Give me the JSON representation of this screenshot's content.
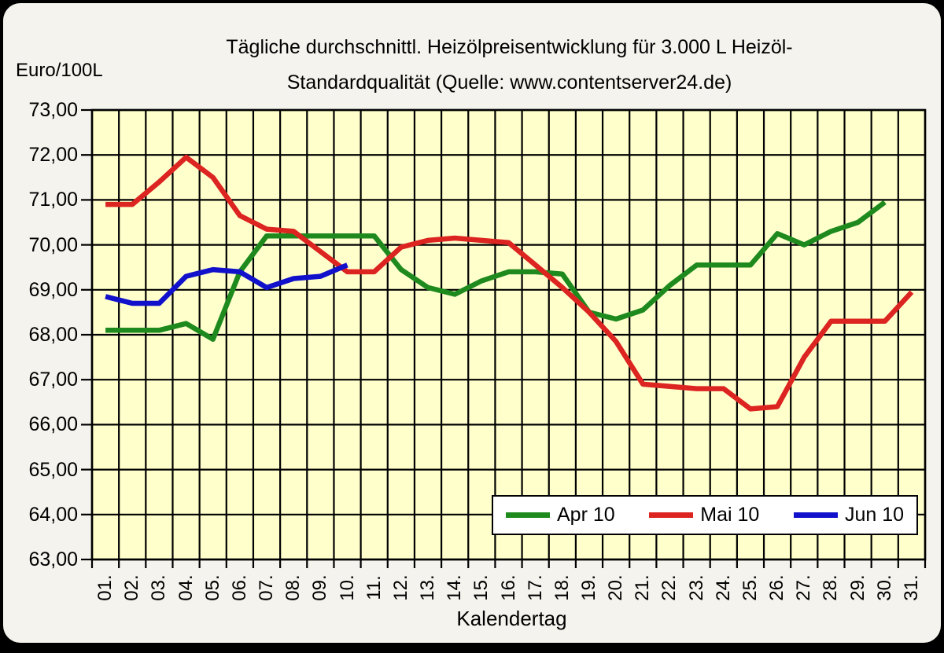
{
  "header": {
    "title_line1": "Tägliche durchschnittl. Heizölpreisentwicklung für 3.000 L Heizöl-",
    "title_line2": "Standardqualität (Quelle: www.contentserver24.de)",
    "axis_unit_label": "Euro/100L"
  },
  "chart_data": {
    "type": "line",
    "title": "Tägliche durchschnittl. Heizölpreisentwicklung für 3.000 L Heizöl-Standardqualität (Quelle: www.contentserver24.de)",
    "ylabel": "Euro/100L",
    "xlabel": "Kalendertag",
    "ylim": [
      63,
      73
    ],
    "ytick_step": 1,
    "ytick_labels": [
      "73,00",
      "72,00",
      "71,00",
      "70,00",
      "69,00",
      "68,00",
      "67,00",
      "66,00",
      "65,00",
      "64,00",
      "63,00"
    ],
    "categories": [
      "01.",
      "02.",
      "03.",
      "04.",
      "05.",
      "06.",
      "07.",
      "08.",
      "09.",
      "10.",
      "11.",
      "12.",
      "13.",
      "14.",
      "15.",
      "16.",
      "17.",
      "18.",
      "19.",
      "20.",
      "21.",
      "22.",
      "23.",
      "24.",
      "25.",
      "26.",
      "27.",
      "28.",
      "29.",
      "30.",
      "31."
    ],
    "grid": true,
    "plot_bg_color": "#ffffcc",
    "grid_color": "#000000",
    "legend_position": "inside-bottom-right",
    "series": [
      {
        "name": "Apr 10",
        "color": "#1e8a1e",
        "values": [
          68.1,
          68.1,
          68.1,
          68.25,
          67.9,
          69.4,
          70.2,
          70.2,
          70.2,
          70.2,
          70.2,
          69.45,
          69.05,
          68.9,
          69.2,
          69.4,
          69.4,
          69.35,
          68.5,
          68.35,
          68.55,
          69.1,
          69.55,
          69.55,
          69.55,
          70.25,
          70.0,
          70.3,
          70.5,
          70.95
        ]
      },
      {
        "name": "Mai 10",
        "color": "#dc2420",
        "values": [
          70.9,
          70.9,
          71.4,
          71.95,
          71.5,
          70.65,
          70.35,
          70.3,
          69.85,
          69.4,
          69.4,
          69.95,
          70.1,
          70.15,
          70.1,
          70.05,
          69.55,
          69.05,
          68.5,
          67.85,
          66.9,
          66.85,
          66.8,
          66.8,
          66.35,
          66.4,
          67.5,
          68.3,
          68.3,
          68.3,
          68.95
        ]
      },
      {
        "name": "Jun 10",
        "color": "#1111cc",
        "values": [
          68.85,
          68.7,
          68.7,
          69.3,
          69.45,
          69.4,
          69.05,
          69.25,
          69.3,
          69.55
        ]
      }
    ]
  }
}
